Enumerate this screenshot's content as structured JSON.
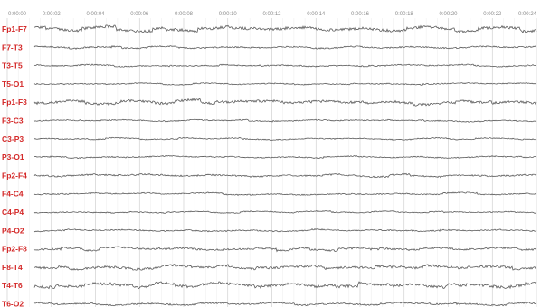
{
  "chart_data": {
    "type": "line",
    "title": "",
    "xlabel": "",
    "ylabel": "",
    "x_ticks": [
      "0:00:00",
      "0:00:02",
      "0:00:04",
      "0:00:06",
      "0:00:08",
      "0:00:10",
      "0:00:12",
      "0:00:14",
      "0:00:16",
      "0:00:18",
      "0:00:20",
      "0:00:22",
      "0:00:24"
    ],
    "xlim": [
      0,
      24
    ],
    "grid": true,
    "channel_label_color": "#d42a2a",
    "trace_color": "#5a5a5a",
    "grid_color": "#c9c9c9",
    "series": [
      {
        "name": "Fp1-F7"
      },
      {
        "name": "F7-T3"
      },
      {
        "name": "T3-T5"
      },
      {
        "name": "T5-O1"
      },
      {
        "name": "Fp1-F3"
      },
      {
        "name": "F3-C3"
      },
      {
        "name": "C3-P3"
      },
      {
        "name": "P3-O1"
      },
      {
        "name": "Fp2-F4"
      },
      {
        "name": "F4-C4"
      },
      {
        "name": "C4-P4"
      },
      {
        "name": "P4-O2"
      },
      {
        "name": "Fp2-F8"
      },
      {
        "name": "F8-T4"
      },
      {
        "name": "T4-T6"
      },
      {
        "name": "T6-O2"
      }
    ]
  }
}
